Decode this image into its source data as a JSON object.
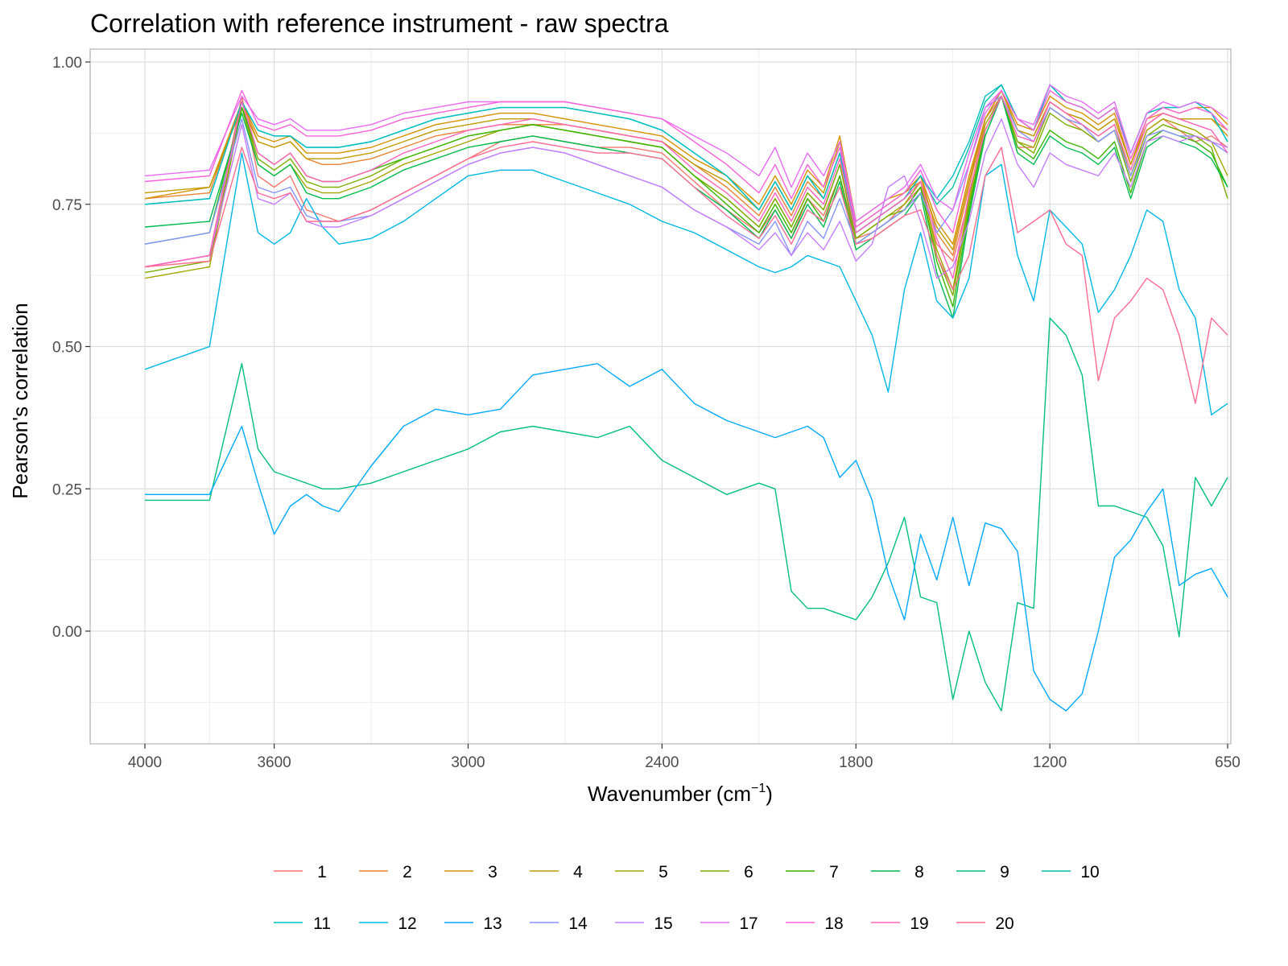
{
  "chart_data": {
    "type": "line",
    "title": "Correlation with reference instrument - raw spectra",
    "xlabel": "Wavenumber",
    "xlabel_unit_base": "cm",
    "xlabel_unit_exp": "−1",
    "ylabel": "Pearson's correlation",
    "x_reversed": true,
    "xlim": [
      4000,
      650
    ],
    "ylim": [
      -0.2,
      1.0
    ],
    "x_ticks": [
      4000,
      3600,
      3000,
      2400,
      1800,
      1200,
      650
    ],
    "x_tick_labels": [
      "4000",
      "3600",
      "3000",
      "2400",
      "1800",
      "1200",
      "650"
    ],
    "y_ticks": [
      0.0,
      0.25,
      0.5,
      0.75,
      1.0
    ],
    "y_tick_labels": [
      "0.00",
      "0.25",
      "0.50",
      "0.75",
      "1.00"
    ],
    "grid": true,
    "legend_position": "bottom",
    "x": [
      4000,
      3800,
      3700,
      3650,
      3600,
      3550,
      3500,
      3450,
      3400,
      3300,
      3200,
      3100,
      3000,
      2900,
      2800,
      2700,
      2600,
      2500,
      2400,
      2300,
      2200,
      2100,
      2050,
      2000,
      1950,
      1900,
      1850,
      1800,
      1750,
      1700,
      1650,
      1600,
      1550,
      1500,
      1450,
      1400,
      1350,
      1300,
      1250,
      1200,
      1150,
      1100,
      1050,
      1000,
      950,
      900,
      850,
      800,
      750,
      700,
      650
    ],
    "series": [
      {
        "name": "1",
        "color": "#F8766D",
        "values": [
          0.64,
          0.66,
          0.94,
          0.8,
          0.78,
          0.8,
          0.74,
          0.73,
          0.72,
          0.74,
          0.77,
          0.8,
          0.83,
          0.86,
          0.87,
          0.86,
          0.85,
          0.85,
          0.84,
          0.79,
          0.74,
          0.7,
          0.74,
          0.69,
          0.76,
          0.73,
          0.8,
          0.69,
          0.7,
          0.72,
          0.75,
          0.78,
          0.68,
          0.65,
          0.76,
          0.9,
          0.94,
          0.85,
          0.85,
          0.92,
          0.9,
          0.88,
          0.86,
          0.88,
          0.8,
          0.88,
          0.9,
          0.88,
          0.86,
          0.87,
          0.85
        ]
      },
      {
        "name": "2",
        "color": "#EA8331",
        "values": [
          0.76,
          0.77,
          0.93,
          0.86,
          0.85,
          0.86,
          0.83,
          0.82,
          0.82,
          0.83,
          0.85,
          0.87,
          0.88,
          0.89,
          0.89,
          0.89,
          0.88,
          0.87,
          0.86,
          0.82,
          0.78,
          0.73,
          0.78,
          0.73,
          0.79,
          0.76,
          0.84,
          0.7,
          0.72,
          0.74,
          0.76,
          0.8,
          0.7,
          0.66,
          0.78,
          0.9,
          0.95,
          0.88,
          0.87,
          0.93,
          0.91,
          0.9,
          0.88,
          0.9,
          0.82,
          0.9,
          0.91,
          0.9,
          0.9,
          0.9,
          0.88
        ]
      },
      {
        "name": "3",
        "color": "#D89000",
        "values": [
          0.76,
          0.78,
          0.93,
          0.87,
          0.86,
          0.87,
          0.84,
          0.84,
          0.84,
          0.85,
          0.87,
          0.89,
          0.9,
          0.91,
          0.91,
          0.9,
          0.89,
          0.88,
          0.87,
          0.83,
          0.8,
          0.75,
          0.8,
          0.75,
          0.81,
          0.78,
          0.87,
          0.72,
          0.74,
          0.76,
          0.77,
          0.8,
          0.72,
          0.68,
          0.8,
          0.9,
          0.95,
          0.89,
          0.88,
          0.94,
          0.92,
          0.91,
          0.89,
          0.91,
          0.82,
          0.9,
          0.92,
          0.91,
          0.92,
          0.92,
          0.89
        ]
      },
      {
        "name": "4",
        "color": "#C09B00",
        "values": [
          0.77,
          0.78,
          0.92,
          0.86,
          0.85,
          0.86,
          0.83,
          0.83,
          0.83,
          0.84,
          0.86,
          0.88,
          0.89,
          0.9,
          0.9,
          0.89,
          0.88,
          0.87,
          0.86,
          0.82,
          0.79,
          0.74,
          0.79,
          0.74,
          0.8,
          0.77,
          0.86,
          0.71,
          0.73,
          0.75,
          0.77,
          0.79,
          0.71,
          0.67,
          0.79,
          0.9,
          0.95,
          0.88,
          0.87,
          0.93,
          0.91,
          0.9,
          0.88,
          0.9,
          0.82,
          0.89,
          0.91,
          0.9,
          0.9,
          0.9,
          0.87
        ]
      },
      {
        "name": "5",
        "color": "#A3A500",
        "values": [
          0.62,
          0.64,
          0.92,
          0.82,
          0.8,
          0.82,
          0.78,
          0.77,
          0.77,
          0.79,
          0.82,
          0.84,
          0.86,
          0.88,
          0.89,
          0.88,
          0.87,
          0.86,
          0.85,
          0.8,
          0.76,
          0.71,
          0.76,
          0.71,
          0.77,
          0.74,
          0.82,
          0.69,
          0.71,
          0.73,
          0.75,
          0.79,
          0.67,
          0.6,
          0.76,
          0.89,
          0.94,
          0.86,
          0.85,
          0.92,
          0.9,
          0.89,
          0.87,
          0.89,
          0.8,
          0.88,
          0.9,
          0.89,
          0.88,
          0.86,
          0.8
        ]
      },
      {
        "name": "6",
        "color": "#7CAE00",
        "values": [
          0.63,
          0.65,
          0.92,
          0.83,
          0.81,
          0.83,
          0.79,
          0.78,
          0.78,
          0.8,
          0.83,
          0.85,
          0.87,
          0.88,
          0.89,
          0.88,
          0.87,
          0.86,
          0.85,
          0.8,
          0.76,
          0.71,
          0.76,
          0.71,
          0.77,
          0.74,
          0.82,
          0.69,
          0.71,
          0.73,
          0.74,
          0.78,
          0.66,
          0.59,
          0.75,
          0.88,
          0.94,
          0.86,
          0.84,
          0.91,
          0.89,
          0.88,
          0.86,
          0.88,
          0.79,
          0.87,
          0.89,
          0.88,
          0.87,
          0.85,
          0.76
        ]
      },
      {
        "name": "7",
        "color": "#39B600",
        "values": [
          0.68,
          0.7,
          0.92,
          0.84,
          0.82,
          0.84,
          0.8,
          0.79,
          0.79,
          0.81,
          0.83,
          0.85,
          0.87,
          0.88,
          0.89,
          0.88,
          0.87,
          0.86,
          0.85,
          0.8,
          0.75,
          0.7,
          0.75,
          0.7,
          0.76,
          0.72,
          0.8,
          0.68,
          0.7,
          0.72,
          0.74,
          0.78,
          0.65,
          0.57,
          0.74,
          0.88,
          0.94,
          0.85,
          0.83,
          0.88,
          0.86,
          0.85,
          0.83,
          0.86,
          0.77,
          0.86,
          0.88,
          0.87,
          0.86,
          0.84,
          0.78
        ]
      },
      {
        "name": "8",
        "color": "#00BB4E",
        "values": [
          0.71,
          0.72,
          0.91,
          0.82,
          0.8,
          0.82,
          0.77,
          0.76,
          0.76,
          0.78,
          0.81,
          0.83,
          0.85,
          0.86,
          0.87,
          0.86,
          0.85,
          0.84,
          0.83,
          0.78,
          0.74,
          0.69,
          0.74,
          0.69,
          0.75,
          0.71,
          0.79,
          0.67,
          0.69,
          0.71,
          0.73,
          0.77,
          0.63,
          0.55,
          0.73,
          0.87,
          0.94,
          0.84,
          0.82,
          0.87,
          0.85,
          0.84,
          0.82,
          0.85,
          0.76,
          0.85,
          0.87,
          0.86,
          0.85,
          0.83,
          0.78
        ]
      },
      {
        "name": "9",
        "color": "#00BF7D",
        "values": [
          0.23,
          0.23,
          0.47,
          0.32,
          0.28,
          0.27,
          0.26,
          0.25,
          0.25,
          0.26,
          0.28,
          0.3,
          0.32,
          0.35,
          0.36,
          0.35,
          0.34,
          0.36,
          0.3,
          0.27,
          0.24,
          0.26,
          0.25,
          0.07,
          0.04,
          0.04,
          0.03,
          0.02,
          0.06,
          0.12,
          0.2,
          0.06,
          0.05,
          -0.12,
          0.0,
          -0.09,
          -0.14,
          0.05,
          0.04,
          0.55,
          0.52,
          0.45,
          0.22,
          0.22,
          0.21,
          0.2,
          0.15,
          -0.01,
          0.27,
          0.22,
          0.27
        ]
      },
      {
        "name": "10",
        "color": "#00C1A7",
        "values": [
          0.75,
          0.76,
          0.93,
          0.88,
          0.87,
          0.87,
          0.85,
          0.85,
          0.85,
          0.86,
          0.88,
          0.9,
          0.91,
          0.92,
          0.92,
          0.92,
          0.91,
          0.9,
          0.88,
          0.84,
          0.8,
          0.74,
          0.79,
          0.74,
          0.8,
          0.76,
          0.84,
          0.7,
          0.72,
          0.74,
          0.76,
          0.8,
          0.75,
          0.78,
          0.85,
          0.93,
          0.96,
          0.9,
          0.88,
          0.96,
          0.93,
          0.92,
          0.9,
          0.92,
          0.84,
          0.91,
          0.92,
          0.92,
          0.93,
          0.91,
          0.86
        ]
      },
      {
        "name": "11",
        "color": "#00BFC4",
        "values": [
          0.75,
          0.76,
          0.93,
          0.88,
          0.87,
          0.87,
          0.85,
          0.85,
          0.85,
          0.86,
          0.88,
          0.9,
          0.91,
          0.92,
          0.92,
          0.92,
          0.91,
          0.9,
          0.88,
          0.84,
          0.8,
          0.74,
          0.79,
          0.74,
          0.8,
          0.76,
          0.84,
          0.7,
          0.72,
          0.74,
          0.76,
          0.8,
          0.76,
          0.8,
          0.86,
          0.94,
          0.96,
          0.9,
          0.88,
          0.96,
          0.93,
          0.92,
          0.9,
          0.92,
          0.84,
          0.91,
          0.92,
          0.92,
          0.93,
          0.91,
          0.86
        ]
      },
      {
        "name": "12",
        "color": "#00B8E7",
        "values": [
          0.46,
          0.5,
          0.84,
          0.7,
          0.68,
          0.7,
          0.76,
          0.71,
          0.68,
          0.69,
          0.72,
          0.76,
          0.8,
          0.81,
          0.81,
          0.79,
          0.77,
          0.75,
          0.72,
          0.7,
          0.67,
          0.64,
          0.63,
          0.64,
          0.66,
          0.65,
          0.64,
          0.58,
          0.52,
          0.42,
          0.6,
          0.7,
          0.58,
          0.55,
          0.62,
          0.8,
          0.82,
          0.66,
          0.58,
          0.74,
          0.71,
          0.68,
          0.56,
          0.6,
          0.66,
          0.74,
          0.72,
          0.6,
          0.55,
          0.38,
          0.4
        ]
      },
      {
        "name": "13",
        "color": "#00A9FF",
        "values": [
          0.24,
          0.24,
          0.36,
          0.26,
          0.17,
          0.22,
          0.24,
          0.22,
          0.21,
          0.29,
          0.36,
          0.39,
          0.38,
          0.39,
          0.45,
          0.46,
          0.47,
          0.43,
          0.46,
          0.4,
          0.37,
          0.35,
          0.34,
          0.35,
          0.36,
          0.34,
          0.27,
          0.3,
          0.23,
          0.1,
          0.02,
          0.17,
          0.09,
          0.2,
          0.08,
          0.19,
          0.18,
          0.14,
          -0.07,
          -0.12,
          -0.14,
          -0.11,
          0.0,
          0.13,
          0.16,
          0.21,
          0.25,
          0.08,
          0.1,
          0.11,
          0.06
        ]
      },
      {
        "name": "14",
        "color": "#8494FF",
        "values": [
          0.68,
          0.7,
          0.9,
          0.78,
          0.77,
          0.78,
          0.73,
          0.72,
          0.72,
          0.73,
          0.76,
          0.79,
          0.82,
          0.84,
          0.85,
          0.84,
          0.82,
          0.8,
          0.78,
          0.74,
          0.71,
          0.68,
          0.72,
          0.66,
          0.72,
          0.69,
          0.76,
          0.68,
          0.7,
          0.72,
          0.74,
          0.77,
          0.7,
          0.74,
          0.82,
          0.92,
          0.94,
          0.88,
          0.86,
          0.92,
          0.9,
          0.89,
          0.86,
          0.88,
          0.8,
          0.87,
          0.88,
          0.87,
          0.87,
          0.86,
          0.84
        ]
      },
      {
        "name": "15",
        "color": "#C77CFF",
        "values": [
          0.64,
          0.66,
          0.89,
          0.76,
          0.75,
          0.77,
          0.72,
          0.71,
          0.71,
          0.73,
          0.76,
          0.79,
          0.82,
          0.84,
          0.85,
          0.84,
          0.82,
          0.8,
          0.78,
          0.74,
          0.71,
          0.67,
          0.7,
          0.66,
          0.7,
          0.67,
          0.72,
          0.65,
          0.68,
          0.78,
          0.8,
          0.72,
          0.62,
          0.64,
          0.72,
          0.84,
          0.9,
          0.82,
          0.78,
          0.84,
          0.82,
          0.81,
          0.8,
          0.84,
          0.78,
          0.86,
          0.87,
          0.86,
          0.87,
          0.86,
          0.85
        ]
      },
      {
        "name": "17",
        "color": "#E76BF3",
        "values": [
          0.8,
          0.81,
          0.94,
          0.9,
          0.89,
          0.9,
          0.88,
          0.88,
          0.88,
          0.89,
          0.91,
          0.92,
          0.93,
          0.93,
          0.93,
          0.93,
          0.92,
          0.91,
          0.9,
          0.87,
          0.84,
          0.8,
          0.85,
          0.78,
          0.84,
          0.8,
          0.86,
          0.72,
          0.74,
          0.76,
          0.78,
          0.82,
          0.76,
          0.74,
          0.84,
          0.92,
          0.95,
          0.9,
          0.89,
          0.96,
          0.94,
          0.93,
          0.91,
          0.93,
          0.84,
          0.91,
          0.93,
          0.92,
          0.93,
          0.92,
          0.9
        ]
      },
      {
        "name": "18",
        "color": "#FA62DB",
        "values": [
          0.79,
          0.8,
          0.95,
          0.89,
          0.88,
          0.89,
          0.87,
          0.87,
          0.87,
          0.88,
          0.9,
          0.91,
          0.92,
          0.93,
          0.93,
          0.93,
          0.92,
          0.91,
          0.9,
          0.86,
          0.82,
          0.77,
          0.82,
          0.76,
          0.82,
          0.78,
          0.85,
          0.71,
          0.73,
          0.75,
          0.77,
          0.81,
          0.74,
          0.7,
          0.82,
          0.91,
          0.95,
          0.9,
          0.88,
          0.95,
          0.93,
          0.92,
          0.9,
          0.92,
          0.83,
          0.9,
          0.92,
          0.91,
          0.92,
          0.91,
          0.88
        ]
      },
      {
        "name": "19",
        "color": "#FF62BC",
        "values": [
          0.64,
          0.66,
          0.93,
          0.84,
          0.82,
          0.84,
          0.8,
          0.79,
          0.79,
          0.81,
          0.84,
          0.86,
          0.88,
          0.89,
          0.9,
          0.89,
          0.88,
          0.87,
          0.86,
          0.81,
          0.77,
          0.72,
          0.77,
          0.72,
          0.78,
          0.75,
          0.83,
          0.7,
          0.72,
          0.74,
          0.76,
          0.79,
          0.69,
          0.62,
          0.77,
          0.88,
          0.94,
          0.87,
          0.86,
          0.93,
          0.91,
          0.89,
          0.87,
          0.89,
          0.81,
          0.89,
          0.91,
          0.9,
          0.89,
          0.88,
          0.84
        ]
      },
      {
        "name": "20",
        "color": "#FF6C91",
        "values": [
          0.64,
          0.65,
          0.85,
          0.77,
          0.76,
          0.77,
          0.72,
          0.72,
          0.72,
          0.74,
          0.77,
          0.8,
          0.83,
          0.85,
          0.86,
          0.85,
          0.84,
          0.84,
          0.83,
          0.78,
          0.73,
          0.69,
          0.73,
          0.68,
          0.74,
          0.72,
          0.78,
          0.68,
          0.69,
          0.71,
          0.73,
          0.74,
          0.66,
          0.6,
          0.66,
          0.8,
          0.85,
          0.7,
          0.72,
          0.74,
          0.68,
          0.66,
          0.44,
          0.55,
          0.58,
          0.62,
          0.6,
          0.52,
          0.4,
          0.55,
          0.52
        ]
      }
    ]
  }
}
